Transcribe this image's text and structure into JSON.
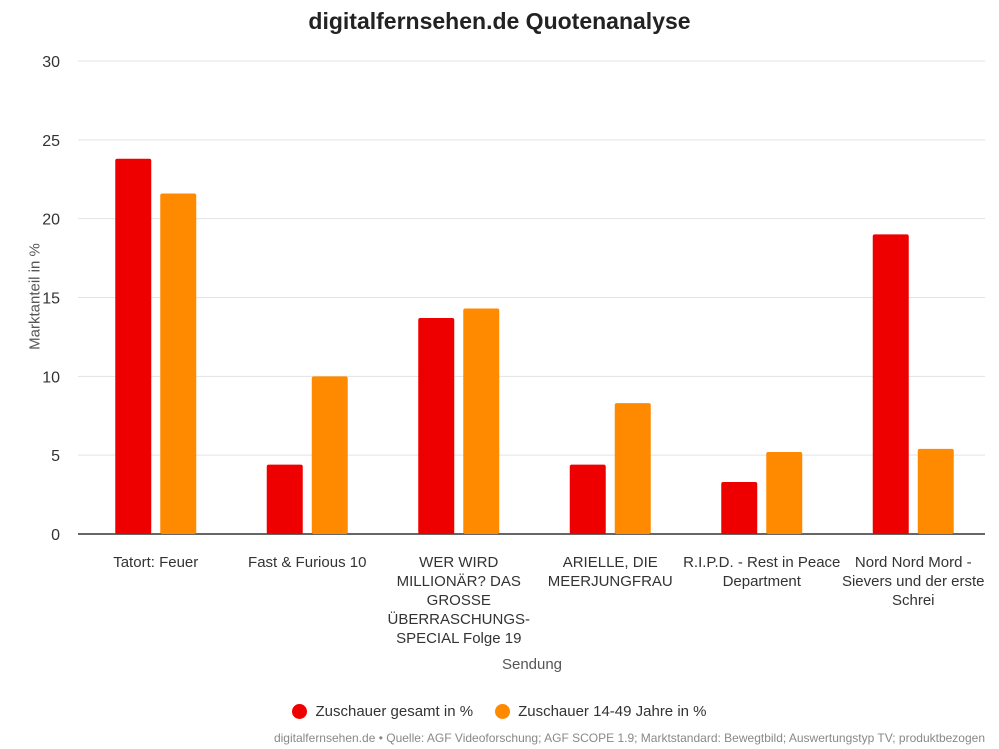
{
  "chart_data": {
    "type": "bar",
    "title": "digitalfernsehen.de Quotenanalyse",
    "xlabel": "Sendung",
    "ylabel": "Marktanteil in %",
    "ylim": [
      0,
      30
    ],
    "yticks": [
      "0",
      "5",
      "10",
      "15",
      "20",
      "25",
      "30"
    ],
    "grid": true,
    "legend_position": "bottom",
    "categories": [
      "Tatort: Feuer",
      "Fast & Furious 10",
      "WER WIRD MILLIONÄR? DAS GROSSE ÜBERRASCHUNGS-SPECIAL Folge 19",
      "ARIELLE, DIE MEERJUNGFRAU",
      "R.I.P.D. - Rest in Peace Department",
      "Nord Nord Mord - Sievers und der erste Schrei"
    ],
    "series": [
      {
        "name": "Zuschauer gesamt in %",
        "color": "#ee0000",
        "values": [
          23.8,
          4.4,
          13.7,
          4.4,
          3.3,
          19.0
        ]
      },
      {
        "name": "Zuschauer 14-49 Jahre in %",
        "color": "#ff8a00",
        "values": [
          21.6,
          10.0,
          14.3,
          8.3,
          5.2,
          5.4
        ]
      }
    ]
  },
  "footer": {
    "source": "digitalfernsehen.de • Quelle: AGF Videoforschung; AGF SCOPE 1.9; Marktstandard: Bewegtbild; Auswertungstyp TV; produktbezogen"
  }
}
